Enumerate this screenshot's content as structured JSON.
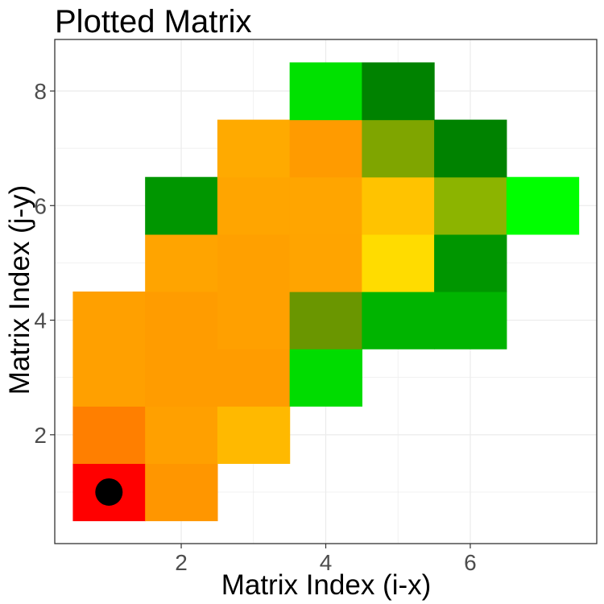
{
  "chart_data": {
    "type": "heatmap",
    "title": "Plotted Matrix",
    "xlabel": "Matrix Index (i-x)",
    "ylabel": "Matrix Index (j-y)",
    "xlim": [
      0.25,
      7.75
    ],
    "ylim": [
      0.1,
      8.9
    ],
    "x_ticks": [
      2,
      4,
      6
    ],
    "y_ticks": [
      2,
      4,
      6,
      8
    ],
    "grid": true,
    "marker": {
      "x": 1,
      "y": 1,
      "color": "#000000"
    },
    "cells": [
      {
        "x": 1,
        "y": 1,
        "color": "#FF0000"
      },
      {
        "x": 2,
        "y": 1,
        "color": "#FF9600"
      },
      {
        "x": 1,
        "y": 2,
        "color": "#FF7F00"
      },
      {
        "x": 2,
        "y": 2,
        "color": "#FFA000"
      },
      {
        "x": 3,
        "y": 2,
        "color": "#FFB900"
      },
      {
        "x": 1,
        "y": 3,
        "color": "#FFA000"
      },
      {
        "x": 2,
        "y": 3,
        "color": "#FF9C00"
      },
      {
        "x": 3,
        "y": 3,
        "color": "#FF9C00"
      },
      {
        "x": 4,
        "y": 3,
        "color": "#00DC00"
      },
      {
        "x": 1,
        "y": 4,
        "color": "#FFA000"
      },
      {
        "x": 2,
        "y": 4,
        "color": "#FF9C00"
      },
      {
        "x": 3,
        "y": 4,
        "color": "#FFA000"
      },
      {
        "x": 4,
        "y": 4,
        "color": "#6A9600"
      },
      {
        "x": 5,
        "y": 4,
        "color": "#00B400"
      },
      {
        "x": 6,
        "y": 4,
        "color": "#00B400"
      },
      {
        "x": 2,
        "y": 5,
        "color": "#FFA400"
      },
      {
        "x": 3,
        "y": 5,
        "color": "#FFA000"
      },
      {
        "x": 4,
        "y": 5,
        "color": "#FFA400"
      },
      {
        "x": 5,
        "y": 5,
        "color": "#FFDC00"
      },
      {
        "x": 6,
        "y": 5,
        "color": "#009600"
      },
      {
        "x": 2,
        "y": 6,
        "color": "#009600"
      },
      {
        "x": 3,
        "y": 6,
        "color": "#FFA500"
      },
      {
        "x": 4,
        "y": 6,
        "color": "#FFA500"
      },
      {
        "x": 5,
        "y": 6,
        "color": "#FFC300"
      },
      {
        "x": 6,
        "y": 6,
        "color": "#8CB400"
      },
      {
        "x": 7,
        "y": 6,
        "color": "#00FF00"
      },
      {
        "x": 3,
        "y": 7,
        "color": "#FFAA00"
      },
      {
        "x": 4,
        "y": 7,
        "color": "#FF9B00"
      },
      {
        "x": 5,
        "y": 7,
        "color": "#7FA500"
      },
      {
        "x": 6,
        "y": 7,
        "color": "#008200"
      },
      {
        "x": 4,
        "y": 8,
        "color": "#00E100"
      },
      {
        "x": 5,
        "y": 8,
        "color": "#008200"
      }
    ]
  }
}
